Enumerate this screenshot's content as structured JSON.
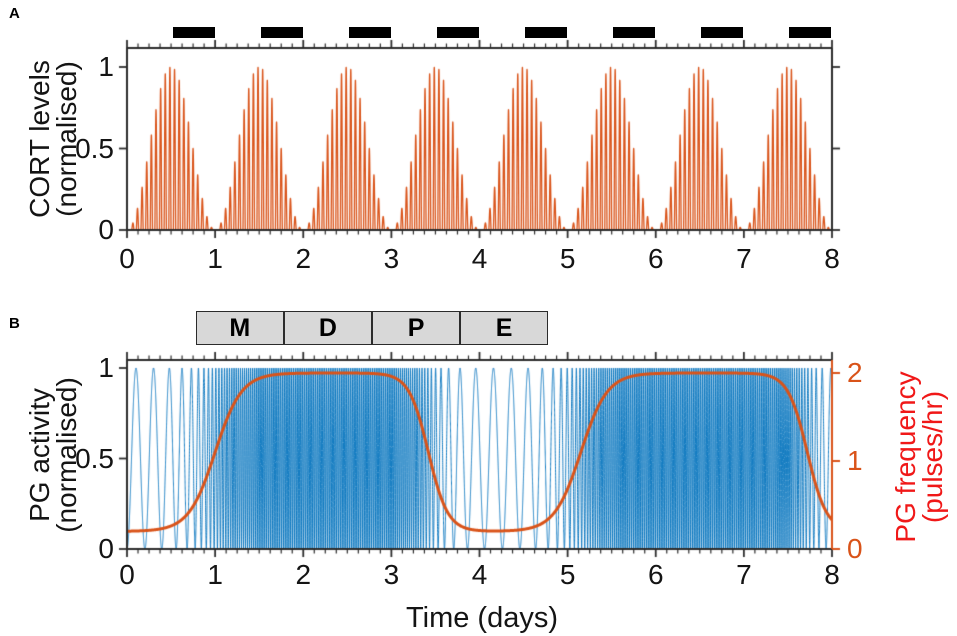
{
  "figure": {
    "panel_a_letter": "A",
    "panel_b_letter": "B",
    "background_color": "#ffffff",
    "spine_color": "#2b2b2b"
  },
  "chart_data": [
    {
      "id": "A",
      "type": "line",
      "ylabel_line1": "CORT levels",
      "ylabel_line2": "(normalised)",
      "xlabel": "",
      "x_ticks": [
        0,
        1,
        2,
        3,
        4,
        5,
        6,
        7,
        8
      ],
      "y_ticks": [
        0,
        0.5,
        1
      ],
      "y_tick_labels": [
        "0",
        "0.5",
        "1"
      ],
      "xlim": [
        0,
        8
      ],
      "ylim": [
        0,
        1.12
      ],
      "x_minor_step_days": 0.125,
      "line_color": "#d95319",
      "series_model": {
        "kind": "circadian_envelope_times_ultradian_pulses",
        "envelope": "sin^2(pi*t)",
        "envelope_peak_time_of_day": 0.5,
        "pulses_per_day": 19,
        "pulse_shape": "max(0,sin(2*pi*19*t))^1.3",
        "amplitude_normalised": 1.0
      },
      "dark_phase_bars": {
        "color": "#000000",
        "intervals_days": [
          [
            0.5,
            1.0
          ],
          [
            1.5,
            2.0
          ],
          [
            2.5,
            3.0
          ],
          [
            3.5,
            4.0
          ],
          [
            4.5,
            5.0
          ],
          [
            5.5,
            6.0
          ],
          [
            6.5,
            7.0
          ],
          [
            7.5,
            8.0
          ]
        ]
      }
    },
    {
      "id": "B",
      "type": "line",
      "xlabel": "Time (days)",
      "ylabel_left_line1": "PG activity",
      "ylabel_left_line2": "(normalised)",
      "ylabel_right_line1": "PG frequency",
      "ylabel_right_line2": "(pulses/hr)",
      "x_ticks": [
        0,
        1,
        2,
        3,
        4,
        5,
        6,
        7,
        8
      ],
      "y_tick_labels_left": [
        "0",
        "0.5",
        "1"
      ],
      "y_ticks_left": [
        0,
        0.5,
        1
      ],
      "y_tick_labels_right": [
        "0",
        "1",
        "2"
      ],
      "y_ticks_right": [
        0,
        1,
        2
      ],
      "xlim": [
        0,
        8
      ],
      "ylim_left": [
        0,
        1.045
      ],
      "ylim_right": [
        0,
        2.15
      ],
      "x_minor_step_days": 0.125,
      "activity_color": "#0072bd",
      "frequency_color": "#d95319",
      "right_axis_color": "#d95319",
      "right_label_color": "#f01818",
      "stage_boxes": {
        "labels": [
          "M",
          "D",
          "P",
          "E"
        ],
        "start_day": 0.78,
        "box_width_days": 1.0,
        "fill": "#d8d8d8",
        "border": "#2b2b2b"
      },
      "frequency_model": {
        "units": "pulses/hr",
        "base_pulses_per_hr": 0.2,
        "max_pulses_per_hr": 2.0,
        "rise_midpoints_days": [
          1.0,
          5.15
        ],
        "fall_midpoints_days": [
          3.42,
          7.72
        ],
        "rise_width_days": 0.15,
        "fall_width_days": 0.11
      },
      "frequency_curve_points": [
        [
          0,
          0.2
        ],
        [
          0.5,
          0.26
        ],
        [
          1.0,
          1.1
        ],
        [
          1.3,
          1.8
        ],
        [
          1.6,
          1.97
        ],
        [
          2.0,
          2.0
        ],
        [
          2.5,
          2.0
        ],
        [
          3.0,
          2.0
        ],
        [
          3.2,
          1.9
        ],
        [
          3.42,
          1.1
        ],
        [
          3.7,
          0.4
        ],
        [
          4.0,
          0.22
        ],
        [
          4.3,
          0.2
        ],
        [
          4.6,
          0.23
        ],
        [
          4.9,
          0.5
        ],
        [
          5.15,
          1.1
        ],
        [
          5.45,
          1.9
        ],
        [
          5.8,
          2.0
        ],
        [
          6.5,
          2.0
        ],
        [
          7.0,
          2.0
        ],
        [
          7.4,
          1.95
        ],
        [
          7.72,
          1.1
        ],
        [
          7.9,
          0.45
        ],
        [
          8.0,
          0.33
        ]
      ],
      "activity_model": {
        "kind": "frequency_modulated_oscillation",
        "range_normalised": [
          0,
          1
        ],
        "waveform": "0.5 - 0.5*cos(2*pi*phase)",
        "phase_rate_cycles_per_day": "24 * frequency(t)"
      }
    }
  ]
}
